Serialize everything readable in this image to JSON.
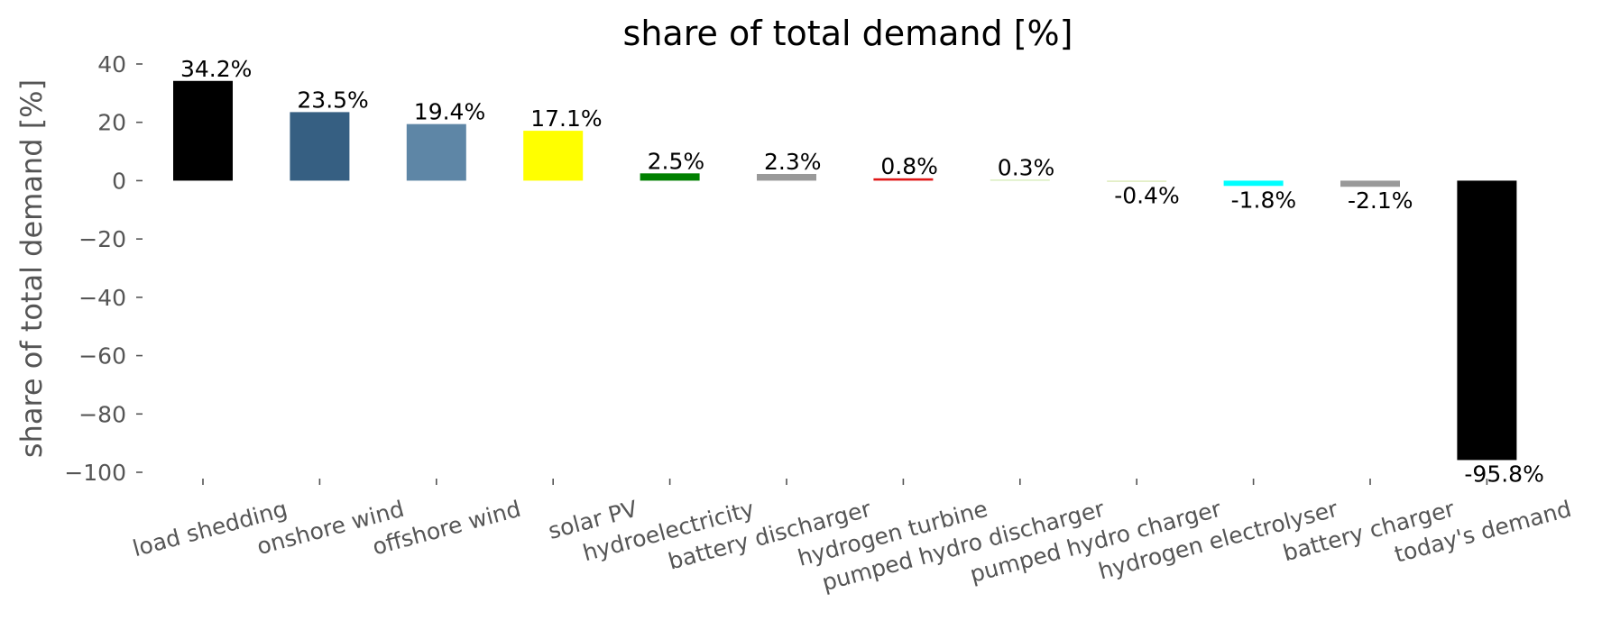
{
  "chart_data": {
    "type": "bar",
    "title": "share of total demand [%]",
    "ylabel": "share of total demand [%]",
    "xlabel": "",
    "ylim": [
      -100,
      40
    ],
    "yticks": [
      40,
      20,
      0,
      -20,
      -40,
      -60,
      -80,
      -100
    ],
    "ytick_labels": [
      "40",
      "20",
      "0",
      "−20",
      "−40",
      "−60",
      "−80",
      "−100"
    ],
    "grid": false,
    "categories": [
      "load shedding",
      "onshore wind",
      "offshore wind",
      "solar PV",
      "hydroelectricity",
      "battery discharger",
      "hydrogen turbine",
      "pumped hydro discharger",
      "pumped hydro charger",
      "hydrogen electrolyser",
      "battery charger",
      "today's demand"
    ],
    "values": [
      34.2,
      23.5,
      19.4,
      17.1,
      2.5,
      2.3,
      0.8,
      0.3,
      -0.4,
      -1.8,
      -2.1,
      -95.8
    ],
    "data_labels": [
      "34.2%",
      "23.5%",
      "19.4%",
      "17.1%",
      "2.5%",
      "2.3%",
      "0.8%",
      "0.3%",
      "-0.4%",
      "-1.8%",
      "-2.1%",
      "-95.8%"
    ],
    "colors": [
      "#000000",
      "#365f82",
      "#5e86a6",
      "#ffff00",
      "#008000",
      "#999999",
      "#e01818",
      "#c8e6a0",
      "#d8e8b0",
      "#00ffff",
      "#999999",
      "#000000"
    ]
  }
}
